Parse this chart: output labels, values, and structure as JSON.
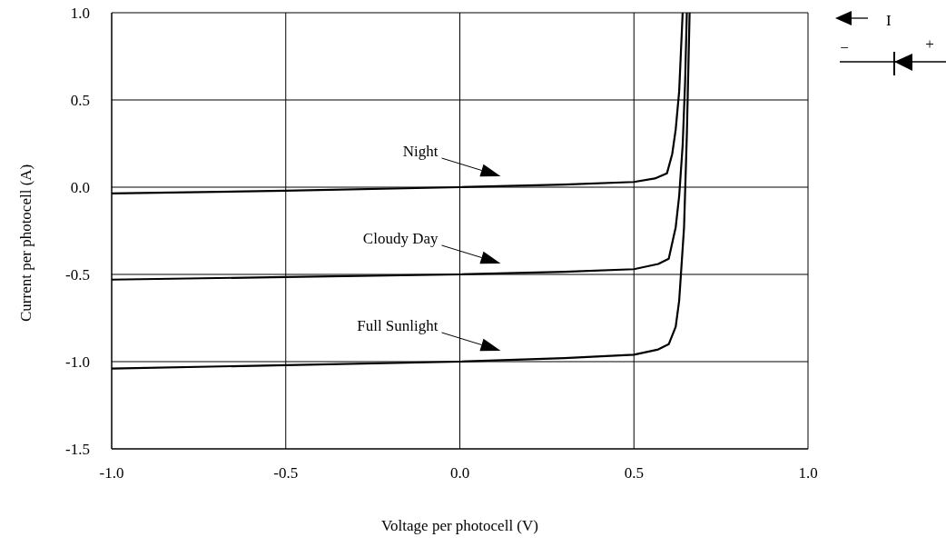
{
  "chart_data": {
    "type": "line",
    "xlabel": "Voltage per photocell (V)",
    "ylabel": "Current per photocell (A)",
    "xlim": [
      -1.0,
      1.0
    ],
    "ylim": [
      -1.5,
      1.0
    ],
    "xticks": [
      {
        "value": -1,
        "label": "-1.0"
      },
      {
        "value": -0.5,
        "label": "-0.5"
      },
      {
        "value": 0,
        "label": "0.0"
      },
      {
        "value": 0.5,
        "label": "0.5"
      },
      {
        "value": 1,
        "label": "1.0"
      }
    ],
    "yticks": [
      {
        "value": -1.5,
        "label": "-1.5"
      },
      {
        "value": -1,
        "label": "-1.0"
      },
      {
        "value": -0.5,
        "label": "-0.5"
      },
      {
        "value": 0,
        "label": "0.0"
      },
      {
        "value": 0.5,
        "label": "0.5"
      },
      {
        "value": 1,
        "label": "1.0"
      }
    ],
    "grid": true,
    "marker": "none",
    "line_style": "solid",
    "series": [
      {
        "name": "Night",
        "color": "#000000",
        "x": [
          -1.0,
          -0.5,
          0.0,
          0.3,
          0.5,
          0.56,
          0.595,
          0.61,
          0.62,
          0.63,
          0.64
        ],
        "values": [
          -0.036,
          -0.02,
          0.0,
          0.015,
          0.03,
          0.05,
          0.08,
          0.19,
          0.33,
          0.55,
          1.0
        ]
      },
      {
        "name": "Cloudy Day",
        "color": "#000000",
        "x": [
          -1.0,
          -0.5,
          0.0,
          0.3,
          0.5,
          0.57,
          0.6,
          0.62,
          0.63,
          0.64,
          0.647,
          0.652
        ],
        "values": [
          -0.53,
          -0.515,
          -0.5,
          -0.485,
          -0.47,
          -0.44,
          -0.41,
          -0.23,
          -0.05,
          0.24,
          0.6,
          1.0
        ]
      },
      {
        "name": "Full Sunlight",
        "color": "#000000",
        "x": [
          -1.0,
          -0.5,
          0.0,
          0.3,
          0.5,
          0.57,
          0.6,
          0.62,
          0.63,
          0.644,
          0.652,
          0.66
        ],
        "values": [
          -1.04,
          -1.02,
          -1.0,
          -0.98,
          -0.96,
          -0.93,
          -0.9,
          -0.8,
          -0.65,
          -0.23,
          0.3,
          1.0
        ]
      }
    ],
    "annotations": [
      "I",
      "−",
      "+"
    ]
  }
}
